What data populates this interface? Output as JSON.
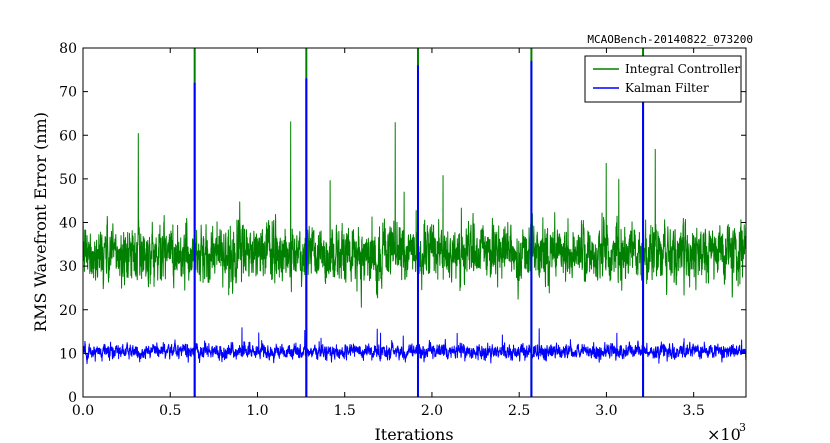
{
  "chart_data": {
    "type": "line",
    "annotation": "MCAOBench-20140822_073200",
    "xlabel": "Iterations",
    "ylabel": "RMS Wavefront Error (nm)",
    "x_scale_label": "×10",
    "x_scale_exponent": "3",
    "xlim": [
      0,
      3.8
    ],
    "ylim": [
      0,
      80
    ],
    "xticks": [
      0.0,
      0.5,
      1.0,
      1.5,
      2.0,
      2.5,
      3.0,
      3.5
    ],
    "xtick_labels": [
      "0.0",
      "0.5",
      "1.0",
      "1.5",
      "2.0",
      "2.5",
      "3.0",
      "3.5"
    ],
    "yticks": [
      0,
      10,
      20,
      30,
      40,
      50,
      60,
      70,
      80
    ],
    "ytick_labels": [
      "0",
      "10",
      "20",
      "30",
      "40",
      "50",
      "60",
      "70",
      "80"
    ],
    "grid": false,
    "legend_position": "top-right",
    "series": [
      {
        "name": "Integral Controller",
        "color": "#008000",
        "baseline": 33,
        "noise_amplitude": 6,
        "spikes": [
          {
            "x": 0.64,
            "y": 80
          },
          {
            "x": 1.28,
            "y": 80
          },
          {
            "x": 1.92,
            "y": 80
          },
          {
            "x": 2.57,
            "y": 80
          },
          {
            "x": 3.21,
            "y": 80
          }
        ]
      },
      {
        "name": "Kalman Filter",
        "color": "#0000ff",
        "baseline": 10.5,
        "noise_amplitude": 1.5,
        "spikes": [
          {
            "x": 0.64,
            "y": 72
          },
          {
            "x": 1.28,
            "y": 73
          },
          {
            "x": 1.92,
            "y": 76
          },
          {
            "x": 2.57,
            "y": 77
          },
          {
            "x": 3.21,
            "y": 75
          }
        ]
      }
    ]
  }
}
